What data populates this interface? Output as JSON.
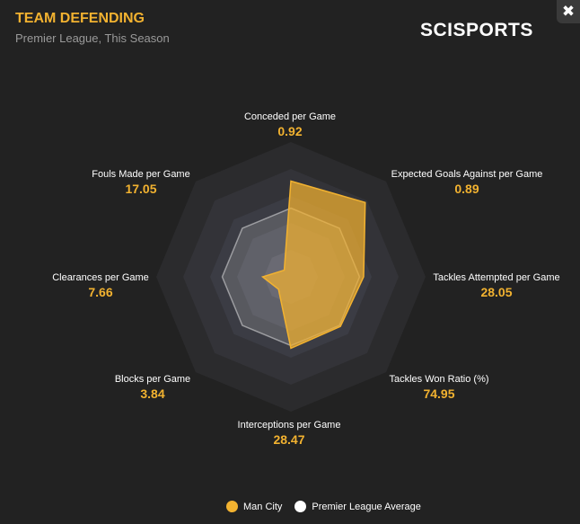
{
  "header": {
    "title": "TEAM DEFENDING",
    "subtitle": "Premier League, This Season",
    "logo": "SCISPORTS",
    "close_icon": "close-circle-icon"
  },
  "chart_data": {
    "type": "radar",
    "axes": [
      "Conceded per Game",
      "Expected Goals Against per Game",
      "Tackles Attempted per Game",
      "Tackles Won Ratio (%)",
      "Interceptions per Game",
      "Blocks per Game",
      "Clearances per Game",
      "Fouls Made per Game"
    ],
    "value_labels": [
      "0.92",
      "0.89",
      "28.05",
      "74.95",
      "28.47",
      "3.84",
      "7.66",
      "17.05"
    ],
    "series": [
      {
        "name": "Man City",
        "color": "#f2b230",
        "scaled": [
          0.71,
          0.78,
          0.54,
          0.52,
          0.53,
          0.13,
          0.21,
          0.07
        ]
      },
      {
        "name": "Premier League Average",
        "color": "#ffffff",
        "scaled": [
          0.51,
          0.51,
          0.51,
          0.51,
          0.51,
          0.51,
          0.51,
          0.51
        ]
      }
    ],
    "rings": 5
  }
}
